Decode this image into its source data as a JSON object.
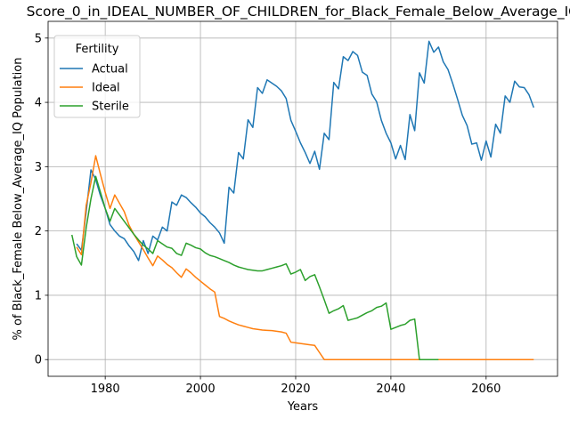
{
  "chart_data": {
    "type": "line",
    "title": "Score_0_in_IDEAL_NUMBER_OF_CHILDREN_for_Black_Female_Below_Average_IQ",
    "xlabel": "Years",
    "ylabel": "% of Black_Female Below_Average_IQ Population",
    "xlim": [
      1968,
      2075
    ],
    "ylim": [
      -0.26,
      5.26
    ],
    "xticks": [
      1980,
      2000,
      2020,
      2040,
      2060
    ],
    "yticks": [
      0,
      1,
      2,
      3,
      4,
      5
    ],
    "grid": true,
    "legend": {
      "title": "Fertility",
      "placement": "top-left"
    },
    "series": [
      {
        "name": "Actual",
        "color": "#1f77b4",
        "x": [
          1974,
          1975,
          1976,
          1977,
          1978,
          1979,
          1980,
          1981,
          1982,
          1983,
          1984,
          1985,
          1986,
          1987,
          1988,
          1989,
          1990,
          1991,
          1992,
          1993,
          1994,
          1995,
          1996,
          1997,
          1998,
          1999,
          2000,
          2001,
          2002,
          2003,
          2004,
          2005,
          2006,
          2007,
          2008,
          2009,
          2010,
          2011,
          2012,
          2013,
          2014,
          2015,
          2016,
          2017,
          2018,
          2019,
          2020,
          2021,
          2022,
          2023,
          2024,
          2025,
          2026,
          2027,
          2028,
          2029,
          2030,
          2031,
          2032,
          2033,
          2034,
          2035,
          2036,
          2037,
          2038,
          2039,
          2040,
          2041,
          2042,
          2043,
          2044,
          2045,
          2046,
          2047,
          2048,
          2049,
          2050,
          2051,
          2052,
          2053,
          2054,
          2055,
          2056,
          2057,
          2058,
          2059,
          2060,
          2061,
          2062,
          2063,
          2064,
          2065,
          2066,
          2067,
          2068,
          2069,
          2070
        ],
        "values": [
          1.8,
          1.7,
          2.3,
          2.95,
          2.8,
          2.55,
          2.35,
          2.1,
          2.0,
          1.92,
          1.88,
          1.77,
          1.68,
          1.54,
          1.85,
          1.65,
          1.92,
          1.86,
          2.06,
          2.0,
          2.45,
          2.4,
          2.56,
          2.52,
          2.44,
          2.37,
          2.28,
          2.22,
          2.13,
          2.06,
          1.97,
          1.81,
          2.68,
          2.59,
          3.22,
          3.12,
          3.73,
          3.61,
          4.23,
          4.14,
          4.35,
          4.3,
          4.25,
          4.18,
          4.06,
          3.72,
          3.55,
          3.37,
          3.22,
          3.05,
          3.24,
          2.96,
          3.52,
          3.42,
          4.31,
          4.21,
          4.71,
          4.65,
          4.79,
          4.73,
          4.47,
          4.42,
          4.13,
          4.01,
          3.72,
          3.52,
          3.37,
          3.12,
          3.33,
          3.11,
          3.81,
          3.56,
          4.46,
          4.3,
          4.95,
          4.78,
          4.86,
          4.63,
          4.51,
          4.29,
          4.05,
          3.8,
          3.64,
          3.35,
          3.37,
          3.1,
          3.4,
          3.15,
          3.66,
          3.52,
          4.1,
          4.0,
          4.33,
          4.24,
          4.23,
          4.12,
          3.92
        ]
      },
      {
        "name": "Ideal",
        "color": "#ff7f0e",
        "x": [
          1974,
          1975,
          1976,
          1977,
          1978,
          1979,
          1980,
          1981,
          1982,
          1983,
          1984,
          1985,
          1986,
          1987,
          1988,
          1989,
          1990,
          1991,
          1992,
          1993,
          1994,
          1995,
          1996,
          1997,
          1998,
          1999,
          2000,
          2001,
          2002,
          2003,
          2004,
          2005,
          2006,
          2007,
          2008,
          2009,
          2010,
          2011,
          2012,
          2013,
          2014,
          2015,
          2016,
          2017,
          2018,
          2019,
          2020,
          2021,
          2022,
          2023,
          2024,
          2025,
          2026,
          2027,
          2028,
          2029,
          2030,
          2031,
          2032,
          2033,
          2034,
          2035,
          2036,
          2037,
          2038,
          2039,
          2040,
          2041,
          2042,
          2043,
          2044,
          2045,
          2046,
          2047,
          2048,
          2049,
          2050,
          2051,
          2052,
          2053,
          2054,
          2055,
          2056,
          2057,
          2058,
          2059,
          2060,
          2061,
          2062,
          2063,
          2064,
          2065,
          2066,
          2067,
          2068,
          2069,
          2070
        ],
        "values": [
          1.75,
          1.63,
          2.4,
          2.75,
          3.17,
          2.88,
          2.6,
          2.35,
          2.56,
          2.43,
          2.3,
          2.09,
          1.95,
          1.83,
          1.71,
          1.58,
          1.46,
          1.61,
          1.55,
          1.48,
          1.43,
          1.35,
          1.28,
          1.41,
          1.35,
          1.28,
          1.22,
          1.16,
          1.1,
          1.05,
          0.67,
          0.64,
          0.6,
          0.57,
          0.54,
          0.52,
          0.5,
          0.48,
          0.47,
          0.46,
          0.455,
          0.45,
          0.44,
          0.43,
          0.41,
          0.27,
          0.26,
          0.25,
          0.24,
          0.23,
          0.22,
          0.11,
          0.0,
          0,
          0,
          0,
          0,
          0,
          0,
          0,
          0,
          0,
          0,
          0,
          0,
          0,
          0,
          0,
          0,
          0,
          0,
          0,
          0,
          0,
          0,
          0,
          0,
          0,
          0,
          0,
          0,
          0,
          0,
          0,
          0,
          0,
          0,
          0,
          0,
          0,
          0,
          0,
          0,
          0,
          0,
          0,
          0
        ]
      },
      {
        "name": "Sterile",
        "color": "#2ca02c",
        "x": [
          1973,
          1974,
          1975,
          1976,
          1977,
          1978,
          1979,
          1980,
          1981,
          1982,
          1983,
          1984,
          1985,
          1986,
          1987,
          1988,
          1989,
          1990,
          1991,
          1992,
          1993,
          1994,
          1995,
          1996,
          1997,
          1998,
          1999,
          2000,
          2001,
          2002,
          2003,
          2004,
          2005,
          2006,
          2007,
          2008,
          2009,
          2010,
          2011,
          2012,
          2013,
          2014,
          2015,
          2016,
          2017,
          2018,
          2019,
          2020,
          2021,
          2022,
          2023,
          2024,
          2025,
          2026,
          2027,
          2028,
          2029,
          2030,
          2031,
          2032,
          2033,
          2034,
          2035,
          2036,
          2037,
          2038,
          2039,
          2040,
          2041,
          2042,
          2043,
          2044,
          2045,
          2046,
          2047,
          2048,
          2049,
          2050
        ],
        "values": [
          1.94,
          1.6,
          1.47,
          2.05,
          2.5,
          2.85,
          2.6,
          2.35,
          2.15,
          2.35,
          2.25,
          2.15,
          2.05,
          1.95,
          1.86,
          1.78,
          1.72,
          1.65,
          1.85,
          1.8,
          1.75,
          1.73,
          1.65,
          1.62,
          1.81,
          1.78,
          1.74,
          1.72,
          1.66,
          1.62,
          1.6,
          1.57,
          1.54,
          1.51,
          1.47,
          1.44,
          1.42,
          1.4,
          1.39,
          1.38,
          1.38,
          1.4,
          1.42,
          1.44,
          1.46,
          1.49,
          1.33,
          1.36,
          1.4,
          1.23,
          1.29,
          1.32,
          1.13,
          0.93,
          0.72,
          0.76,
          0.79,
          0.84,
          0.61,
          0.63,
          0.65,
          0.69,
          0.73,
          0.76,
          0.81,
          0.83,
          0.88,
          0.47,
          0.5,
          0.53,
          0.55,
          0.61,
          0.63,
          0.0,
          0.0,
          0.0,
          0.0,
          0.0
        ]
      }
    ]
  }
}
